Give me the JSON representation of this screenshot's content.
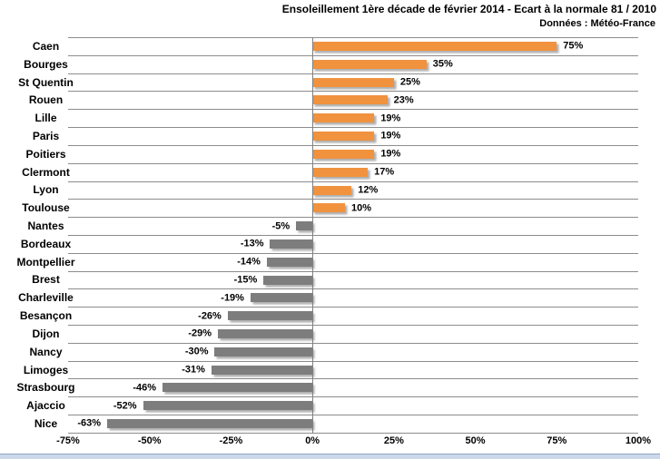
{
  "chart_data": {
    "type": "bar",
    "orientation": "horizontal",
    "title": "Ensoleillement 1ère décade de février 2014 - Ecart à la normale 81 / 2010",
    "subtitle": "Données : Météo-France",
    "xlim": [
      -75,
      100
    ],
    "grid": "category-rows",
    "legend": "none",
    "categories": [
      "Caen",
      "Bourges",
      "St Quentin",
      "Rouen",
      "Lille",
      "Paris",
      "Poitiers",
      "Clermont",
      "Lyon",
      "Toulouse",
      "Nantes",
      "Bordeaux",
      "Montpellier",
      "Brest",
      "Charleville",
      "Besançon",
      "Dijon",
      "Nancy",
      "Limoges",
      "Strasbourg",
      "Ajaccio",
      "Nice"
    ],
    "values": [
      75,
      35,
      25,
      23,
      19,
      19,
      19,
      17,
      12,
      10,
      -5,
      -13,
      -14,
      -15,
      -19,
      -26,
      -29,
      -30,
      -31,
      -46,
      -52,
      -63
    ],
    "value_labels": [
      "75%",
      "35%",
      "25%",
      "23%",
      "19%",
      "19%",
      "19%",
      "17%",
      "12%",
      "10%",
      "-5%",
      "-13%",
      "-14%",
      "-15%",
      "-19%",
      "-26%",
      "-29%",
      "-30%",
      "-31%",
      "-46%",
      "-52%",
      "-63%"
    ],
    "xticks": [
      {
        "value": -75,
        "label": "-75%"
      },
      {
        "value": -50,
        "label": "-50%"
      },
      {
        "value": -25,
        "label": "-25%"
      },
      {
        "value": 0,
        "label": "0%"
      },
      {
        "value": 25,
        "label": "25%"
      },
      {
        "value": 50,
        "label": "50%"
      },
      {
        "value": 75,
        "label": "75%"
      },
      {
        "value": 100,
        "label": "100%"
      }
    ],
    "colors": {
      "positive_bar": "#f0923e",
      "negative_bar": "#7d7d7d",
      "gridline": "#8c8c8c",
      "zero_axis": "#808080",
      "text": "#000000",
      "bottom_strip": "#cbd8ea"
    }
  }
}
